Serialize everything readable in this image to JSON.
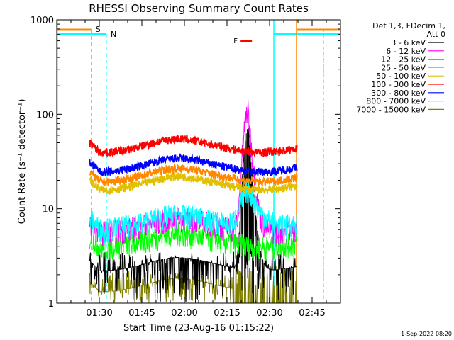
{
  "chart_data": {
    "type": "line",
    "title": "RHESSI Observing Summary Count Rates",
    "xlabel": "Start Time (23-Aug-16 01:15:22)",
    "ylabel": "Count Rate (s⁻¹ detector⁻¹)",
    "y_scale": "log",
    "ylim": [
      1,
      1000
    ],
    "xlim_minutes_after_01_15": [
      0,
      100
    ],
    "x_tick_labels": [
      "01:30",
      "01:45",
      "02:00",
      "02:15",
      "02:30",
      "02:45"
    ],
    "x_tick_minutes_after_01_15": [
      15,
      30,
      45,
      60,
      75,
      90
    ],
    "y_tick_labels": [
      "1",
      "10",
      "100",
      "1000"
    ],
    "y_tick_values": [
      1,
      10,
      100,
      1000
    ],
    "legend_header": [
      "Det 1,3, FDecim 1,",
      "Att 0"
    ],
    "legend_position": "right",
    "timestamp": "1-Sep-2022 08:20",
    "flag_labels": {
      "s": "S",
      "n": "N",
      "f": "F"
    },
    "series": [
      {
        "name": "3 - 6 keV",
        "color": "#000000",
        "approx_level": 2.5
      },
      {
        "name": "6 - 12 keV",
        "color": "#ff00ff",
        "approx_level": 6.5,
        "peak": 110,
        "peak_time": "02:22"
      },
      {
        "name": "12 - 25 keV",
        "color": "#00ff00",
        "approx_level": 4.5
      },
      {
        "name": "25 - 50 keV",
        "color": "#00ffff",
        "approx_level": 7
      },
      {
        "name": "50 - 100 keV",
        "color": "#e0c000",
        "approx_level": 18
      },
      {
        "name": "100 - 300 keV",
        "color": "#ff0000",
        "approx_level": 45
      },
      {
        "name": "300 - 800 keV",
        "color": "#0000ff",
        "approx_level": 28
      },
      {
        "name": "800 - 7000 keV",
        "color": "#ff8800",
        "approx_level": 22
      },
      {
        "name": "7000 - 15000 keV",
        "color": "#808000",
        "approx_level": 1.5
      }
    ]
  }
}
